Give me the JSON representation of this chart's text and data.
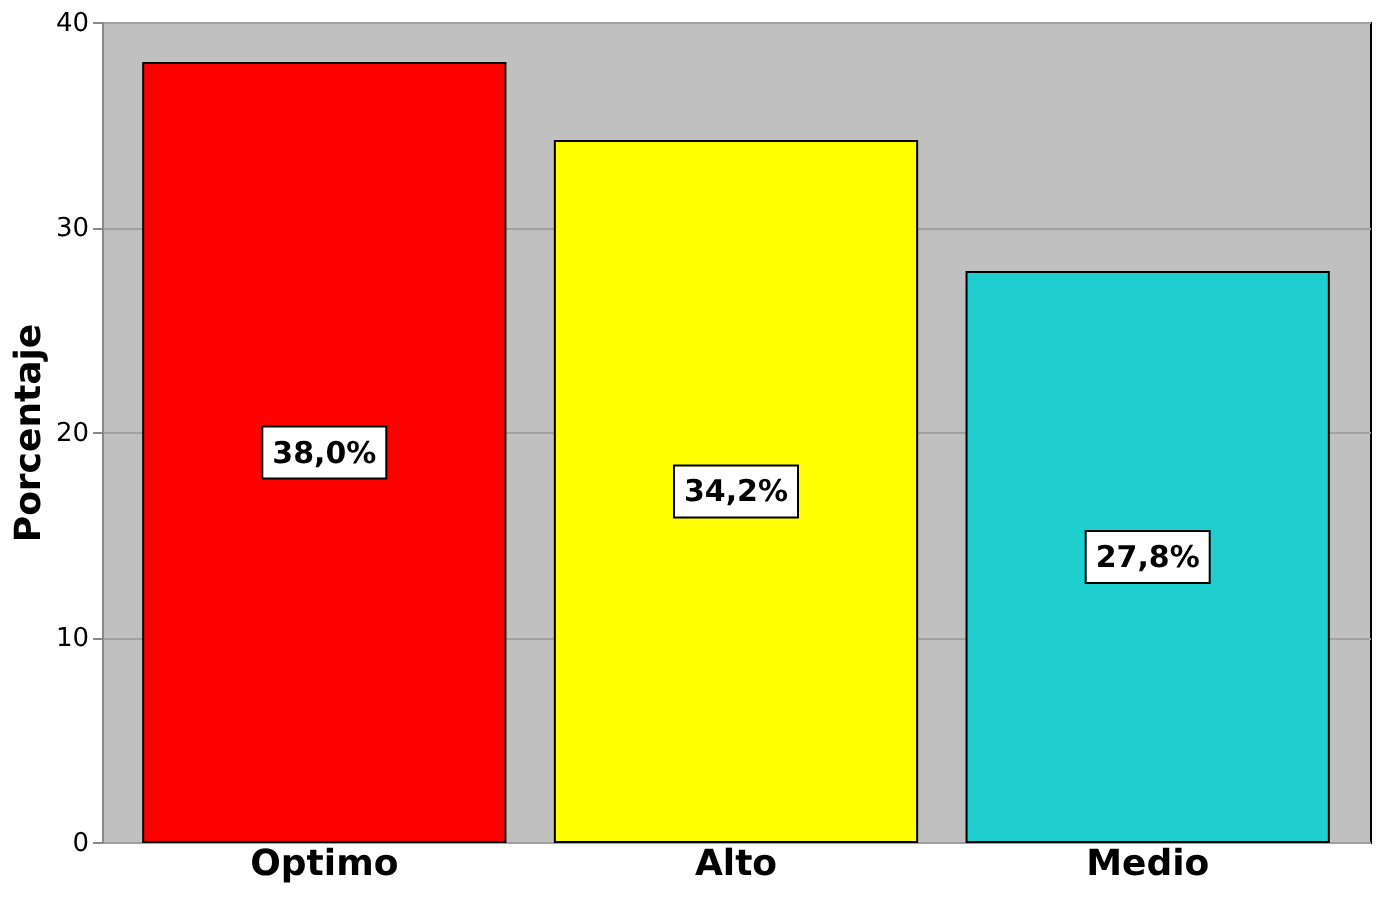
{
  "chart_data": {
    "type": "bar",
    "ylabel": "Porcentaje",
    "categories": [
      "Optimo",
      "Alto",
      "Medio"
    ],
    "values": [
      38.0,
      34.2,
      27.8
    ],
    "colors": [
      "#ff0000",
      "#ffff00",
      "#1fcfcf"
    ],
    "value_labels": [
      "38,0%",
      "34,2%",
      "27,8%"
    ],
    "ylim": [
      0,
      40
    ],
    "yticks": [
      0,
      10,
      20,
      30,
      40
    ],
    "grid": "y"
  }
}
